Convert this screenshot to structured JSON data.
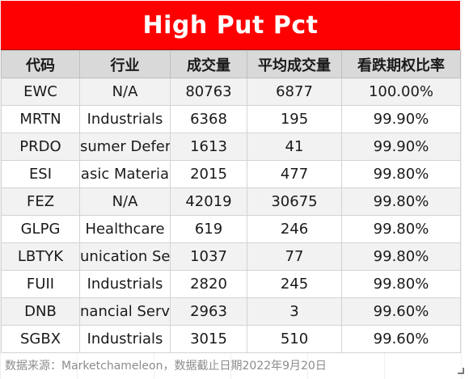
{
  "title": "High Put Pct",
  "headers": [
    "代码",
    "行业",
    "成交量",
    "平均成交量",
    "看跌期权比率"
  ],
  "rows": [
    {
      "code": "EWC",
      "industry": "N/A",
      "volume": "80763",
      "avg_volume": "6877",
      "put_pct": "100.00%"
    },
    {
      "code": "MRTN",
      "industry": "Industrials",
      "volume": "6368",
      "avg_volume": "195",
      "put_pct": "99.90%"
    },
    {
      "code": "PRDO",
      "industry": "sumer Defer",
      "volume": "1613",
      "avg_volume": "41",
      "put_pct": "99.90%"
    },
    {
      "code": "ESI",
      "industry": "asic Materia",
      "volume": "2015",
      "avg_volume": "477",
      "put_pct": "99.80%"
    },
    {
      "code": "FEZ",
      "industry": "N/A",
      "volume": "42019",
      "avg_volume": "30675",
      "put_pct": "99.80%"
    },
    {
      "code": "GLPG",
      "industry": "Healthcare",
      "volume": "619",
      "avg_volume": "246",
      "put_pct": "99.80%"
    },
    {
      "code": "LBTYK",
      "industry": "unication Se",
      "volume": "1037",
      "avg_volume": "77",
      "put_pct": "99.80%"
    },
    {
      "code": "FUII",
      "industry": "Industrials",
      "volume": "2820",
      "avg_volume": "245",
      "put_pct": "99.80%"
    },
    {
      "code": "DNB",
      "industry": "nancial Servic",
      "volume": "2963",
      "avg_volume": "3",
      "put_pct": "99.60%"
    },
    {
      "code": "SGBX",
      "industry": "Industrials",
      "volume": "3015",
      "avg_volume": "510",
      "put_pct": "99.60%"
    }
  ],
  "source_note": "数据来源：Marketchameleon，数据截止日期2022年9月20日",
  "colors": {
    "title_bg": "#ff0000",
    "title_text": "#ffffff",
    "header_bg": "#d9d9d9",
    "row_alt_bg": "#f2f2f2"
  }
}
